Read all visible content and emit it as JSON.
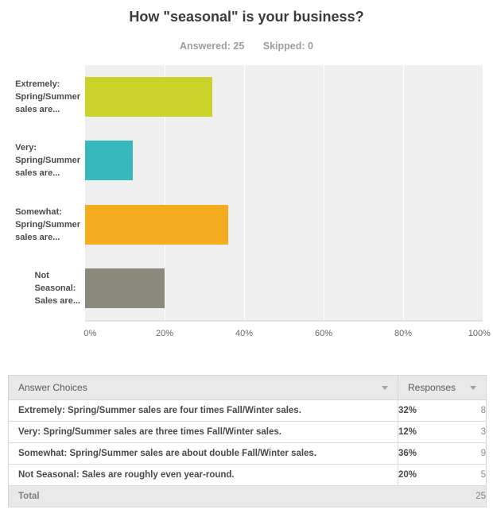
{
  "header": {
    "title": "How \"seasonal\" is your business?",
    "answered": "Answered: 25",
    "skipped": "Skipped: 0"
  },
  "chart_data": {
    "type": "bar",
    "orientation": "horizontal",
    "title": "How \"seasonal\" is your business?",
    "answered": 25,
    "skipped": 0,
    "categories": [
      "Extremely: Spring/Summer sales are four times Fall/Winter sales.",
      "Very: Spring/Summer sales are three times Fall/Winter sales.",
      "Somewhat: Spring/Summer sales are about double Fall/Winter sales.",
      "Not Seasonal: Sales are roughly even year-round."
    ],
    "categories_display": [
      "Extremely:\nSpring/Summer\nsales are...",
      "Very:\nSpring/Summer\nsales are...",
      "Somewhat:\nSpring/Summer\nsales are...",
      "Not\nSeasonal:\nSales are..."
    ],
    "values": [
      32,
      12,
      36,
      20
    ],
    "counts": [
      8,
      3,
      9,
      5
    ],
    "colors": [
      "#cbd32b",
      "#36b8bd",
      "#f5ac1f",
      "#898a7c"
    ],
    "x_ticks": [
      "0%",
      "20%",
      "40%",
      "60%",
      "80%",
      "100%"
    ],
    "xlim": [
      0,
      100
    ],
    "grid": true,
    "plot_bg": "#efefef",
    "legend": "none"
  },
  "table": {
    "headers": [
      "Answer Choices",
      "Responses"
    ],
    "rows": [
      {
        "choice": "Extremely: Spring/Summer sales are four times Fall/Winter sales.",
        "pct": "32%",
        "count": "8"
      },
      {
        "choice": "Very: Spring/Summer sales are three times Fall/Winter sales.",
        "pct": "12%",
        "count": "3"
      },
      {
        "choice": "Somewhat: Spring/Summer sales are about double Fall/Winter sales.",
        "pct": "36%",
        "count": "9"
      },
      {
        "choice": "Not Seasonal: Sales are roughly even year-round.",
        "pct": "20%",
        "count": "5"
      }
    ],
    "total": {
      "label": "Total",
      "value": "25"
    }
  }
}
